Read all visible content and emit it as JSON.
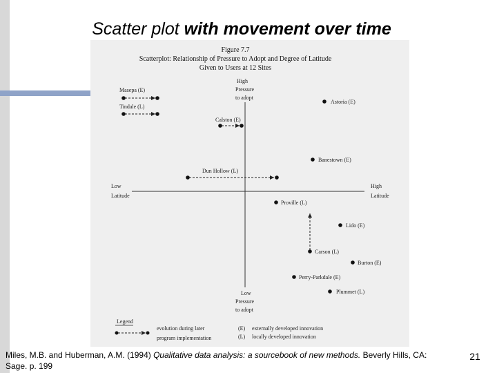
{
  "slide": {
    "title_prefix": "Scatter plot ",
    "title_emphasis": "with movement over time",
    "page_number": "21",
    "citation": {
      "authors": "Miles, M.B. and Huberman, A.M. (1994) ",
      "book_title": "Qualitative data analysis: a sourcebook of new methods.",
      "publisher": " Beverly Hills, CA: Sage. p. 199"
    }
  },
  "figure": {
    "label": "Figure 7.7",
    "title_line1": "Scatterplot: Relationship of Pressure to Adopt and Degree of Latitude",
    "title_line2": "Given to Users at 12 Sites",
    "axis_high_pressure": [
      "High",
      "Pressure",
      "to adopt"
    ],
    "axis_low_pressure": [
      "Low",
      "Pressure",
      "to adopt"
    ],
    "axis_low_latitude": [
      "Low",
      "Latitude"
    ],
    "axis_high_latitude": [
      "High",
      "Latitude"
    ],
    "sites": [
      {
        "name": "Masepa (E)"
      },
      {
        "name": "Tindale (L)"
      },
      {
        "name": "Astoria (E)"
      },
      {
        "name": "Calston (E)"
      },
      {
        "name": "Banestown (E)"
      },
      {
        "name": "Dun Hollow (L)"
      },
      {
        "name": "Proville (L)"
      },
      {
        "name": "Lido (E)"
      },
      {
        "name": "Carson (L)"
      },
      {
        "name": "Burton (E)"
      },
      {
        "name": "Perry-Parkdale (E)"
      },
      {
        "name": "Plummet (L)"
      }
    ],
    "legend": {
      "title": "Legend",
      "arrow_line1": "evolution during later",
      "arrow_line2": "program implementation",
      "e_code": "(E)",
      "e_text": "externally developed innovation",
      "l_code": "(L)",
      "l_text": "locally developed innovation"
    }
  }
}
